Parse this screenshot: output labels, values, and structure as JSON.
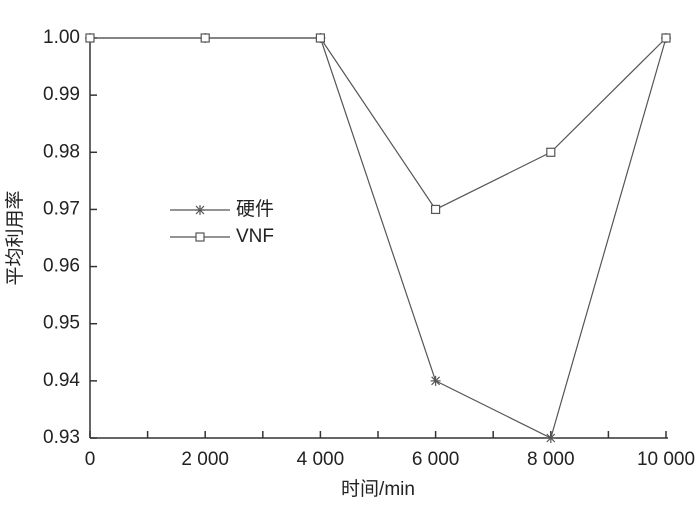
{
  "chart_data": {
    "type": "line",
    "x_label": "时间/min",
    "y_label": "平均利用率",
    "x": [
      0,
      2000,
      4000,
      6000,
      8000,
      10000
    ],
    "series": [
      {
        "name": "硬件",
        "color": "#555555",
        "marker": "asterisk",
        "values": [
          1,
          1,
          1,
          0.94,
          0.93,
          1
        ]
      },
      {
        "name": "VNF",
        "color": "#555555",
        "marker": "square",
        "values": [
          1,
          1,
          1,
          0.97,
          0.98,
          1
        ]
      }
    ],
    "xlim": [
      0,
      10000
    ],
    "xticks": [
      0,
      {
        "value": 2000,
        "label": "2 000"
      },
      {
        "value": 4000,
        "label": "4 000"
      },
      {
        "value": 6000,
        "label": "6 000"
      },
      {
        "value": 8000,
        "label": "8 000"
      },
      {
        "value": 10000,
        "label": "10 000"
      }
    ],
    "ylim": [
      0.93,
      1
    ],
    "yticks": [
      0.93,
      0.94,
      0.95,
      0.96,
      0.97,
      0.98,
      0.99,
      {
        "value": 1,
        "label": "1.00"
      }
    ],
    "grid": false,
    "legend": "center-left"
  }
}
